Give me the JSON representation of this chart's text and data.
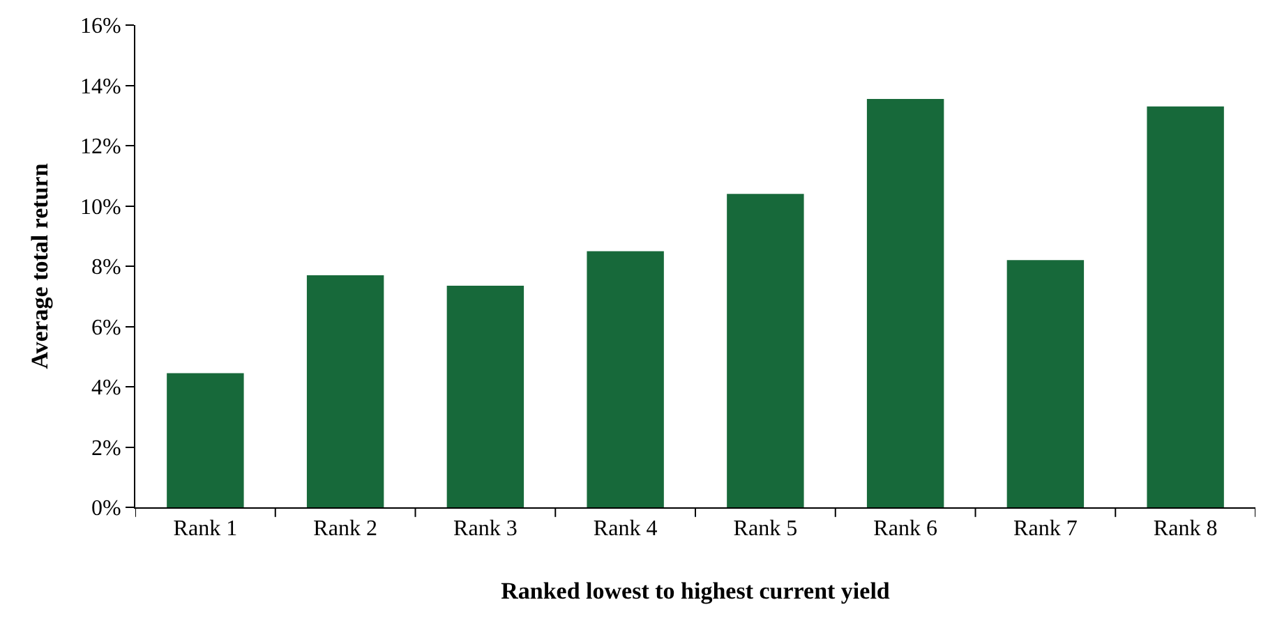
{
  "chart_data": {
    "type": "bar",
    "xlabel": "Ranked lowest to highest current yield",
    "ylabel": "Average total return",
    "categories": [
      "Rank 1",
      "Rank 2",
      "Rank 3",
      "Rank 4",
      "Rank 5",
      "Rank 6",
      "Rank 7",
      "Rank 8"
    ],
    "values": [
      4.45,
      7.7,
      7.35,
      8.5,
      10.4,
      13.55,
      8.2,
      13.3
    ],
    "color": "#17693a",
    "ylim": [
      0,
      16
    ],
    "yticks": [
      {
        "value": 0,
        "label": "0%"
      },
      {
        "value": 2,
        "label": "2%"
      },
      {
        "value": 4,
        "label": "4%"
      },
      {
        "value": 6,
        "label": "6%"
      },
      {
        "value": 8,
        "label": "8%"
      },
      {
        "value": 10,
        "label": "10%"
      },
      {
        "value": 12,
        "label": "12%"
      },
      {
        "value": 14,
        "label": "14%"
      },
      {
        "value": 16,
        "label": "16%"
      }
    ],
    "legend": false
  }
}
